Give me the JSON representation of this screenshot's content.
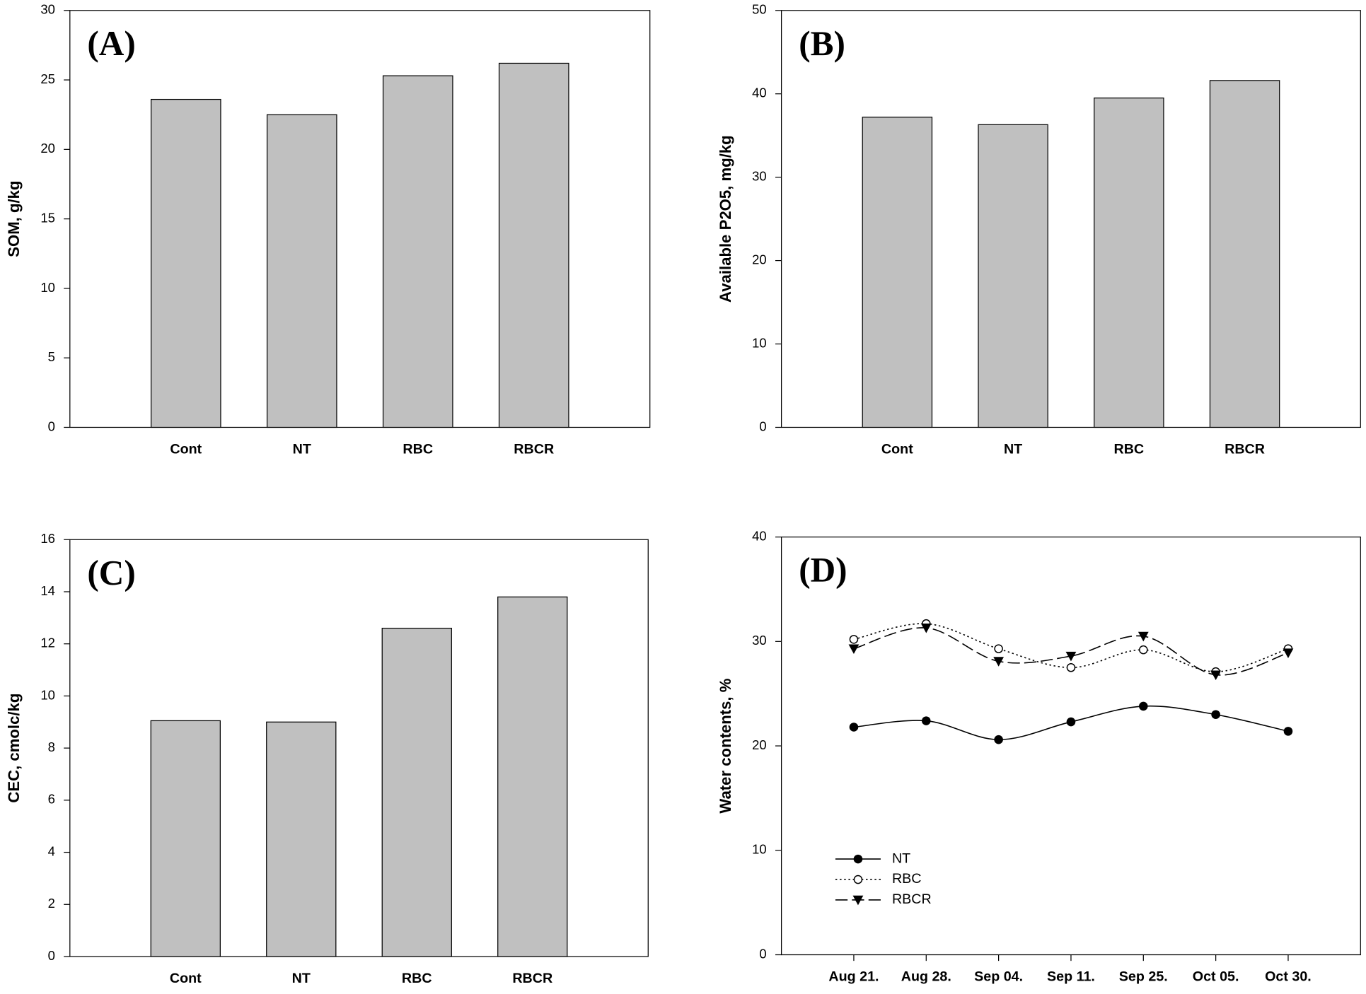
{
  "chart_data": [
    {
      "type": "bar",
      "panel_label": "(A)",
      "ylabel": "SOM, g/kg",
      "categories": [
        "Cont",
        "NT",
        "RBC",
        "RBCR"
      ],
      "values": [
        23.6,
        22.5,
        25.3,
        26.2
      ],
      "color": "#c0c0c0",
      "ylim": [
        0,
        30
      ],
      "yticks": [
        0,
        5,
        10,
        15,
        20,
        25,
        30
      ]
    },
    {
      "type": "bar",
      "panel_label": "(B)",
      "ylabel": "Available P2O5, mg/kg",
      "categories": [
        "Cont",
        "NT",
        "RBC",
        "RBCR"
      ],
      "values": [
        37.2,
        36.3,
        39.5,
        41.6
      ],
      "color": "#c0c0c0",
      "ylim": [
        0,
        50
      ],
      "yticks": [
        0,
        10,
        20,
        30,
        40,
        50
      ]
    },
    {
      "type": "bar",
      "panel_label": "(C)",
      "ylabel": "CEC, cmolc/kg",
      "categories": [
        "Cont",
        "NT",
        "RBC",
        "RBCR"
      ],
      "values": [
        9.05,
        9.0,
        12.6,
        13.8
      ],
      "color": "#c0c0c0",
      "ylim": [
        0,
        16
      ],
      "yticks": [
        0,
        2,
        4,
        6,
        8,
        10,
        12,
        14,
        16
      ]
    },
    {
      "type": "line",
      "panel_label": "(D)",
      "ylabel": "Water contents, %",
      "categories": [
        "Aug 21.",
        "Aug 28.",
        "Sep 04.",
        "Sep 11.",
        "Sep 25.",
        "Oct 05.",
        "Oct 30."
      ],
      "series": [
        {
          "name": "NT",
          "color": "#000000",
          "marker": "filled-circle",
          "line_style": "solid",
          "values": [
            21.8,
            22.4,
            20.6,
            22.3,
            23.8,
            23.0,
            21.4
          ]
        },
        {
          "name": "RBC",
          "color": "#000000",
          "marker": "open-circle",
          "line_style": "dotted",
          "values": [
            30.2,
            31.7,
            29.3,
            27.5,
            29.2,
            27.1,
            29.3
          ]
        },
        {
          "name": "RBCR",
          "color": "#000000",
          "marker": "filled-triangle-down",
          "line_style": "dashed",
          "values": [
            29.3,
            31.3,
            28.1,
            28.6,
            30.5,
            26.8,
            28.9
          ]
        }
      ],
      "ylim": [
        0,
        40
      ],
      "yticks": [
        0,
        10,
        20,
        30,
        40
      ],
      "legend": "lower-left"
    }
  ]
}
